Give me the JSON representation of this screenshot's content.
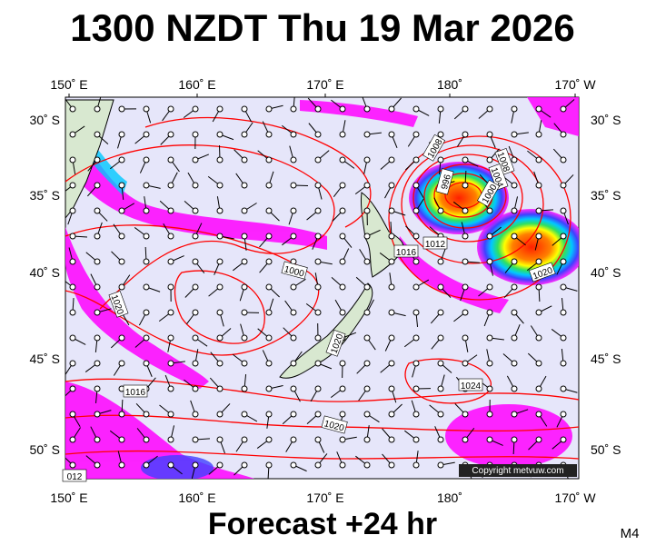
{
  "header": {
    "title": "1300 NZDT Thu 19 Mar 2026"
  },
  "map": {
    "lon_labels": [
      "150˚ E",
      "160˚ E",
      "170˚ E",
      "180˚",
      "170˚ W"
    ],
    "lat_labels": [
      "30˚ S",
      "35˚ S",
      "40˚ S",
      "45˚ S",
      "50˚ S"
    ],
    "isobar_labels": [
      "1008",
      "996",
      "1008",
      "1004",
      "1000",
      "1012",
      "1016",
      "1020",
      "1000",
      "1020",
      "1020",
      "1016",
      "1020",
      "1024",
      "012"
    ],
    "copyright": "Copyright metvuw.com"
  },
  "footer": {
    "forecast": "Forecast +24 hr",
    "code": "M4"
  }
}
